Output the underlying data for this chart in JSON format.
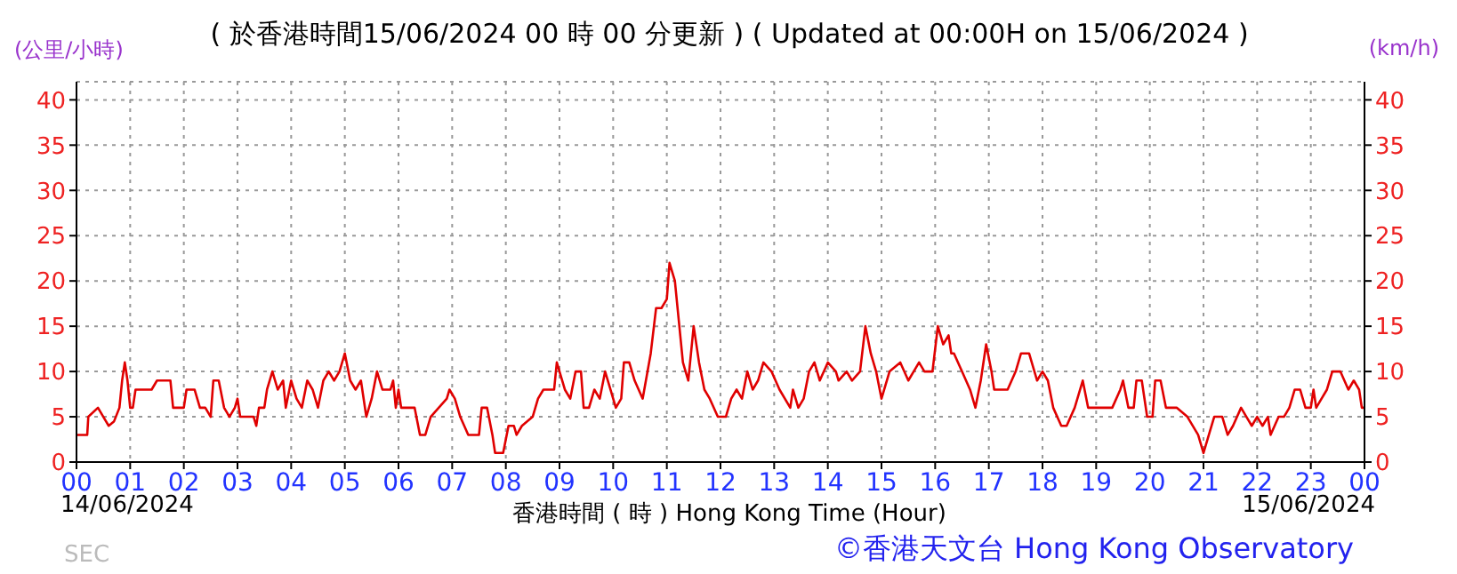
{
  "chart_data": {
    "type": "line",
    "title": "( 於香港時間15/06/2024 00 時 00 分更新 ) ( Updated at 00:00H on 15/06/2024 )",
    "xlabel": "香港時間 ( 時 )  Hong Kong Time (Hour)",
    "ylabel": "(公里/小時)",
    "y2label": "(km/h)",
    "annotations": [
      "14/06/2024",
      "15/06/2024",
      "SEC",
      "©香港天文台 Hong Kong Observatory"
    ],
    "x": [
      0,
      0.2,
      0.22,
      0.4,
      0.5,
      0.6,
      0.7,
      0.8,
      0.85,
      0.9,
      0.95,
      1.0,
      1.05,
      1.1,
      1.4,
      1.5,
      1.75,
      1.8,
      2.0,
      2.05,
      2.2,
      2.3,
      2.4,
      2.5,
      2.55,
      2.65,
      2.75,
      2.85,
      2.95,
      3.0,
      3.05,
      3.3,
      3.35,
      3.4,
      3.5,
      3.55,
      3.65,
      3.75,
      3.85,
      3.9,
      4.0,
      4.1,
      4.2,
      4.3,
      4.4,
      4.5,
      4.6,
      4.7,
      4.8,
      4.9,
      5.0,
      5.1,
      5.2,
      5.3,
      5.4,
      5.5,
      5.6,
      5.7,
      5.85,
      5.9,
      5.95,
      6.0,
      6.05,
      6.3,
      6.4,
      6.5,
      6.6,
      6.75,
      6.9,
      6.95,
      7.05,
      7.15,
      7.3,
      7.5,
      7.55,
      7.65,
      7.75,
      7.8,
      7.95,
      8.05,
      8.15,
      8.2,
      8.3,
      8.5,
      8.6,
      8.7,
      8.9,
      8.95,
      9.1,
      9.2,
      9.3,
      9.4,
      9.45,
      9.55,
      9.65,
      9.75,
      9.85,
      9.95,
      10.05,
      10.15,
      10.2,
      10.3,
      10.4,
      10.55,
      10.7,
      10.8,
      10.9,
      11.0,
      11.05,
      11.15,
      11.3,
      11.4,
      11.5,
      11.6,
      11.7,
      11.8,
      11.95,
      12.1,
      12.2,
      12.3,
      12.4,
      12.5,
      12.6,
      12.7,
      12.8,
      12.95,
      13.1,
      13.3,
      13.35,
      13.45,
      13.55,
      13.65,
      13.75,
      13.85,
      14.0,
      14.15,
      14.2,
      14.35,
      14.45,
      14.6,
      14.7,
      14.8,
      14.9,
      15.0,
      15.15,
      15.35,
      15.5,
      15.6,
      15.7,
      15.8,
      15.95,
      16.05,
      16.15,
      16.25,
      16.3,
      16.35,
      16.5,
      16.65,
      16.75,
      16.85,
      16.95,
      17.05,
      17.1,
      17.35,
      17.5,
      17.6,
      17.75,
      17.9,
      18.0,
      18.1,
      18.2,
      18.35,
      18.45,
      18.6,
      18.75,
      18.85,
      19.1,
      19.3,
      19.45,
      19.5,
      19.6,
      19.7,
      19.75,
      19.85,
      19.95,
      20.05,
      20.1,
      20.2,
      20.3,
      20.5,
      20.7,
      20.9,
      21.0,
      21.1,
      21.2,
      21.35,
      21.45,
      21.55,
      21.7,
      21.8,
      21.9,
      22.0,
      22.1,
      22.2,
      22.25,
      22.4,
      22.5,
      22.6,
      22.7,
      22.8,
      22.9,
      23.0,
      23.05,
      23.1,
      23.2,
      23.3,
      23.4,
      23.55,
      23.7,
      23.8,
      23.9,
      23.95,
      24.0
    ],
    "series": [
      {
        "color": "#e00000",
        "values": [
          3,
          3,
          5,
          6,
          5,
          4,
          4.5,
          6,
          9,
          11,
          9,
          6,
          6,
          8,
          8,
          9,
          9,
          6,
          6,
          8,
          8,
          6,
          6,
          5,
          9,
          9,
          6,
          5,
          6,
          7,
          5,
          5,
          4,
          6,
          6,
          8,
          10,
          8,
          9,
          6,
          9,
          7,
          6,
          9,
          8,
          6,
          9,
          10,
          9,
          10,
          12,
          9,
          8,
          9,
          5,
          7,
          10,
          8,
          8,
          9,
          6,
          8,
          6,
          6,
          3,
          3,
          5,
          6,
          7,
          8,
          7,
          5,
          3,
          3,
          6,
          6,
          3,
          1,
          1,
          4,
          4,
          3,
          4,
          5,
          7,
          8,
          8,
          11,
          8,
          7,
          10,
          10,
          6,
          6,
          8,
          7,
          10,
          8,
          6,
          7,
          11,
          11,
          9,
          7,
          12,
          17,
          17,
          18,
          22,
          20,
          11,
          9,
          15,
          11,
          8,
          7,
          5,
          5,
          7,
          8,
          7,
          10,
          8,
          9,
          11,
          10,
          8,
          6,
          8,
          6,
          7,
          10,
          11,
          9,
          11,
          10,
          9,
          10,
          9,
          10,
          15,
          12,
          10,
          7,
          10,
          11,
          9,
          10,
          11,
          10,
          10,
          15,
          13,
          14,
          12,
          12,
          10,
          8,
          6,
          9,
          13,
          10,
          8,
          8,
          10,
          12,
          12,
          9,
          10,
          9,
          6,
          4,
          4,
          6,
          9,
          6,
          6,
          6,
          8,
          9,
          6,
          6,
          9,
          9,
          5,
          5,
          9,
          9,
          6,
          6,
          5,
          3,
          1,
          3,
          5,
          5,
          3,
          4,
          6,
          5,
          4,
          5,
          4,
          5,
          3,
          5,
          5,
          6,
          8,
          8,
          6,
          6,
          8,
          6,
          7,
          8,
          10,
          10,
          8,
          9,
          8,
          6,
          6
        ]
      }
    ],
    "xlim": [
      0,
      24
    ],
    "xticks": [
      {
        "value": 0,
        "label": "00"
      },
      {
        "value": 1,
        "label": "01"
      },
      {
        "value": 2,
        "label": "02"
      },
      {
        "value": 3,
        "label": "03"
      },
      {
        "value": 4,
        "label": "04"
      },
      {
        "value": 5,
        "label": "05"
      },
      {
        "value": 6,
        "label": "06"
      },
      {
        "value": 7,
        "label": "07"
      },
      {
        "value": 8,
        "label": "08"
      },
      {
        "value": 9,
        "label": "09"
      },
      {
        "value": 10,
        "label": "10"
      },
      {
        "value": 11,
        "label": "11"
      },
      {
        "value": 12,
        "label": "12"
      },
      {
        "value": 13,
        "label": "13"
      },
      {
        "value": 14,
        "label": "14"
      },
      {
        "value": 15,
        "label": "15"
      },
      {
        "value": 16,
        "label": "16"
      },
      {
        "value": 17,
        "label": "17"
      },
      {
        "value": 18,
        "label": "18"
      },
      {
        "value": 19,
        "label": "19"
      },
      {
        "value": 20,
        "label": "20"
      },
      {
        "value": 21,
        "label": "21"
      },
      {
        "value": 22,
        "label": "22"
      },
      {
        "value": 23,
        "label": "23"
      },
      {
        "value": 24,
        "label": "00"
      }
    ],
    "ylim": [
      0,
      42
    ],
    "yticks": [
      0,
      5,
      10,
      15,
      20,
      25,
      30,
      35,
      40
    ],
    "y2lim": [
      0,
      42
    ],
    "y2ticks": [
      0,
      5,
      10,
      15,
      20,
      25,
      30,
      35,
      40
    ],
    "grid": true
  }
}
